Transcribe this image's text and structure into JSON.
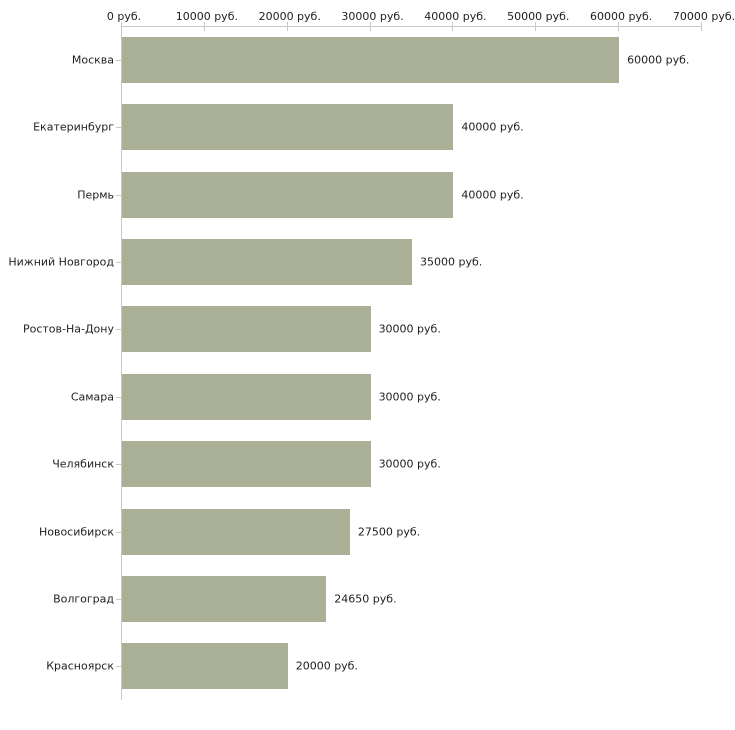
{
  "chart_data": {
    "type": "bar",
    "orientation": "horizontal",
    "title": "",
    "categories": [
      "Москва",
      "Екатеринбург",
      "Пермь",
      "Нижний Новгород",
      "Ростов-На-Дону",
      "Самара",
      "Челябинск",
      "Новосибирск",
      "Волгоград",
      "Красноярск"
    ],
    "values": [
      60000,
      40000,
      40000,
      35000,
      30000,
      30000,
      30000,
      27500,
      24650,
      20000
    ],
    "value_labels": [
      "60000 руб.",
      "40000 руб.",
      "40000 руб.",
      "35000 руб.",
      "30000 руб.",
      "30000 руб.",
      "30000 руб.",
      "27500 руб.",
      "24650 руб.",
      "20000 руб."
    ],
    "x_axis": {
      "position": "top",
      "min": 0,
      "max": 70000,
      "tick_interval": 10000,
      "tick_labels": [
        "0 руб.",
        "10000 руб.",
        "20000 руб.",
        "30000 руб.",
        "40000 руб.",
        "50000 руб.",
        "60000 руб.",
        "70000 руб."
      ]
    },
    "grid": false,
    "legend": false,
    "colors": {
      "bar": "#aab096",
      "axis_line": "#c9c9c9",
      "tick": "#c9cbb2",
      "text": "#1f1f1f",
      "background": "#ffffff"
    }
  }
}
